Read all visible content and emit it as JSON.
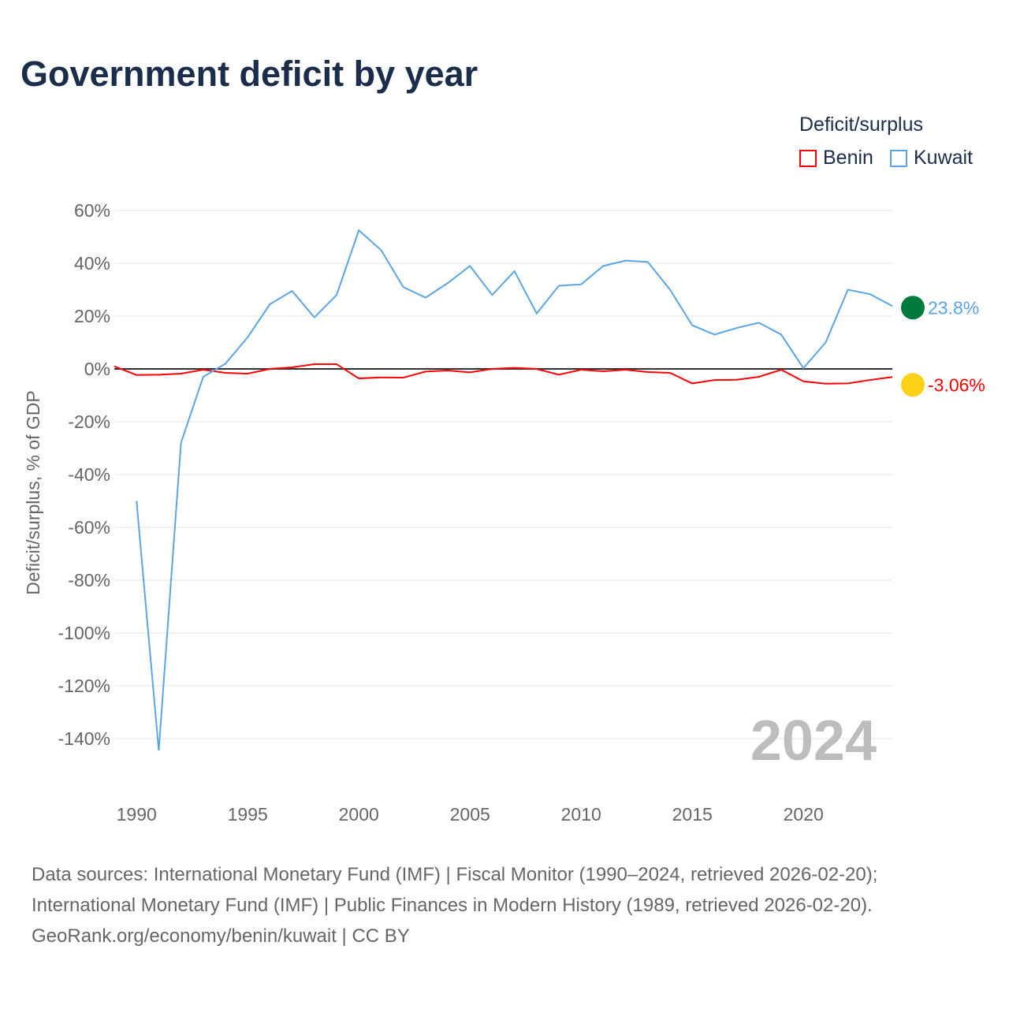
{
  "title": "Government deficit by year",
  "legend": {
    "title": "Deficit/surplus",
    "items": [
      {
        "name": "Benin",
        "color": "#ff0000"
      },
      {
        "name": "Kuwait",
        "color": "#5aa5e8"
      }
    ]
  },
  "footer": [
    "Data sources: International Monetary Fund (IMF) | Fiscal Monitor (1990–2024, retrieved 2026-02-20);",
    "International Monetary Fund (IMF) | Public Finances in Modern History (1989, retrieved 2026-02-20).",
    "GeoRank.org/economy/benin/kuwait | CC BY"
  ],
  "chart_data": {
    "type": "line",
    "ylabel": "Deficit/surplus, % of GDP",
    "ylim": [
      -140,
      60
    ],
    "yticks": [
      60,
      40,
      20,
      0,
      -20,
      -40,
      -60,
      -80,
      -100,
      -120,
      -140
    ],
    "ytick_labels": [
      "60%",
      "40%",
      "20%",
      "0%",
      "-20%",
      "-40%",
      "-60%",
      "-80%",
      "-100%",
      "-120%",
      "-140%"
    ],
    "xticks": [
      1990,
      1995,
      2000,
      2005,
      2010,
      2015,
      2020
    ],
    "xlim": [
      1989,
      2024
    ],
    "year_label": "2024",
    "series": [
      {
        "name": "Benin",
        "color": "#ff0000",
        "end_label": "-3.06%",
        "x": [
          1989,
          1990,
          1991,
          1992,
          1993,
          1994,
          1995,
          1996,
          1997,
          1998,
          1999,
          2000,
          2001,
          2002,
          2003,
          2004,
          2005,
          2006,
          2007,
          2008,
          2009,
          2010,
          2011,
          2012,
          2013,
          2014,
          2015,
          2016,
          2017,
          2018,
          2019,
          2020,
          2021,
          2022,
          2023,
          2024
        ],
        "values": [
          1,
          -2.3,
          -2.2,
          -1.8,
          -0.3,
          -1.5,
          -1.8,
          0,
          0.6,
          1.8,
          1.8,
          -3.6,
          -3.2,
          -3.3,
          -1,
          -0.6,
          -1.3,
          0,
          0.4,
          0,
          -2.2,
          -0.3,
          -0.9,
          -0.3,
          -1.2,
          -1.5,
          -5.5,
          -4.2,
          -4.1,
          -3,
          -0.3,
          -4.7,
          -5.6,
          -5.5,
          -4.2,
          -3.06
        ]
      },
      {
        "name": "Kuwait",
        "color": "#5aa5e8",
        "end_label": "23.8%",
        "x": [
          1990,
          1991,
          1992,
          1993,
          1994,
          1995,
          1996,
          1997,
          1998,
          1999,
          2000,
          2001,
          2002,
          2003,
          2004,
          2005,
          2006,
          2007,
          2008,
          2009,
          2010,
          2011,
          2012,
          2013,
          2014,
          2015,
          2016,
          2017,
          2018,
          2019,
          2020,
          2021,
          2022,
          2023,
          2024
        ],
        "values": [
          -50,
          -144.5,
          -28,
          -3,
          2,
          12,
          24.5,
          29.5,
          19.5,
          28,
          52.5,
          45,
          31,
          27,
          32.5,
          39,
          28,
          37,
          21,
          31.5,
          32,
          39,
          41,
          40.5,
          30,
          16.5,
          13,
          15.5,
          17.5,
          13,
          0.3,
          10,
          30,
          28.3,
          23.8
        ]
      }
    ]
  }
}
